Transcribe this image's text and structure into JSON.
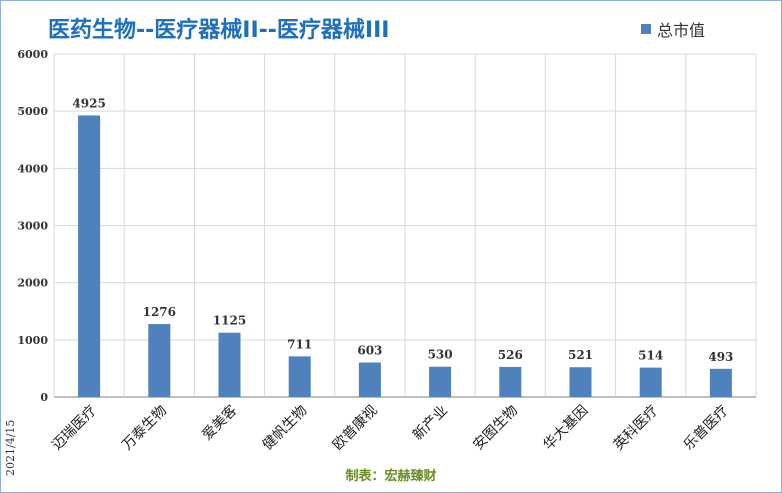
{
  "title": "医药生物--医疗器械II--医疗器械III",
  "legend": "总市值",
  "date_label": "2021/4/15",
  "credit": "制表：宏赫臻财",
  "colors": {
    "bar": "#4f81bd",
    "title": "#1f6fc0",
    "credit": "#6b8e23"
  },
  "chart_data": {
    "type": "bar",
    "categories": [
      "迈瑞医疗",
      "万泰生物",
      "爱美客",
      "健帆生物",
      "欧普康视",
      "新产业",
      "安图生物",
      "华大基因",
      "英科医疗",
      "乐普医疗"
    ],
    "series": [
      {
        "name": "总市值",
        "values": [
          4925,
          1276,
          1125,
          711,
          603,
          530,
          526,
          521,
          514,
          493
        ]
      }
    ],
    "ylim": [
      0,
      6000
    ],
    "yticks": [
      "0",
      "1000",
      "2000",
      "3000",
      "4000",
      "5000",
      "6000"
    ],
    "grid": true,
    "legend_position": "top-right"
  }
}
